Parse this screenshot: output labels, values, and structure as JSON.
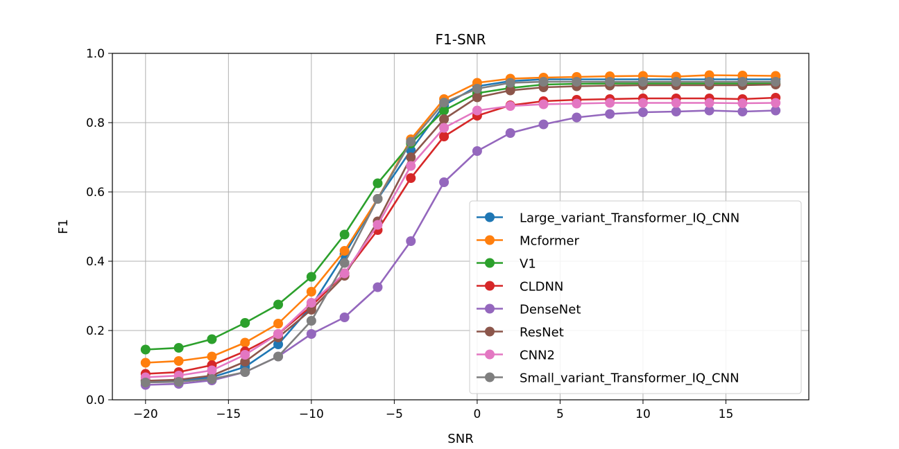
{
  "chart_data": {
    "type": "line",
    "title": "F1-SNR",
    "xlabel": "SNR",
    "ylabel": "F1",
    "xlim": [
      -22,
      20
    ],
    "ylim": [
      0.0,
      1.0
    ],
    "xticks": [
      -20,
      -15,
      -10,
      -5,
      0,
      5,
      10,
      15
    ],
    "xtick_labels": [
      "−20",
      "−15",
      "−10",
      "−5",
      "0",
      "5",
      "10",
      "15"
    ],
    "yticks": [
      0.0,
      0.2,
      0.4,
      0.6,
      0.8,
      1.0
    ],
    "ytick_labels": [
      "0.0",
      "0.2",
      "0.4",
      "0.6",
      "0.8",
      "1.0"
    ],
    "grid": true,
    "legend_position": "center-right",
    "x": [
      -20,
      -18,
      -16,
      -14,
      -12,
      -10,
      -8,
      -6,
      -4,
      -2,
      0,
      2,
      4,
      6,
      8,
      10,
      12,
      14,
      16,
      18
    ],
    "series": [
      {
        "name": "Large_variant_Transformer_IQ_CNN",
        "color": "#1f77b4",
        "values": [
          0.055,
          0.055,
          0.065,
          0.095,
          0.16,
          0.27,
          0.42,
          0.58,
          0.72,
          0.85,
          0.905,
          0.92,
          0.925,
          0.925,
          0.925,
          0.925,
          0.925,
          0.925,
          0.925,
          0.925
        ]
      },
      {
        "name": "Mcformer",
        "color": "#ff7f0e",
        "values": [
          0.107,
          0.112,
          0.125,
          0.165,
          0.22,
          0.312,
          0.43,
          0.58,
          0.752,
          0.868,
          0.915,
          0.927,
          0.93,
          0.932,
          0.934,
          0.935,
          0.933,
          0.937,
          0.936,
          0.935
        ]
      },
      {
        "name": "V1",
        "color": "#2ca02c",
        "values": [
          0.145,
          0.15,
          0.175,
          0.222,
          0.275,
          0.355,
          0.477,
          0.625,
          0.74,
          0.835,
          0.885,
          0.9,
          0.91,
          0.912,
          0.913,
          0.913,
          0.913,
          0.913,
          0.913,
          0.913
        ]
      },
      {
        "name": "CLDNN",
        "color": "#d62728",
        "values": [
          0.075,
          0.08,
          0.1,
          0.14,
          0.19,
          0.27,
          0.365,
          0.49,
          0.64,
          0.76,
          0.82,
          0.85,
          0.862,
          0.866,
          0.868,
          0.87,
          0.87,
          0.87,
          0.868,
          0.872
        ]
      },
      {
        "name": "DenseNet",
        "color": "#9467bd",
        "values": [
          0.043,
          0.046,
          0.056,
          0.08,
          0.125,
          0.19,
          0.238,
          0.325,
          0.458,
          0.628,
          0.718,
          0.77,
          0.795,
          0.815,
          0.825,
          0.83,
          0.832,
          0.835,
          0.832,
          0.835
        ]
      },
      {
        "name": "ResNet",
        "color": "#8c564b",
        "values": [
          0.055,
          0.058,
          0.07,
          0.11,
          0.18,
          0.26,
          0.358,
          0.515,
          0.7,
          0.81,
          0.873,
          0.893,
          0.902,
          0.905,
          0.907,
          0.908,
          0.908,
          0.908,
          0.908,
          0.91
        ]
      },
      {
        "name": "CNN2",
        "color": "#e377c2",
        "values": [
          0.065,
          0.07,
          0.085,
          0.13,
          0.19,
          0.28,
          0.365,
          0.505,
          0.675,
          0.785,
          0.835,
          0.848,
          0.853,
          0.855,
          0.857,
          0.857,
          0.857,
          0.857,
          0.856,
          0.857
        ]
      },
      {
        "name": "Small_variant_Transformer_IQ_CNN",
        "color": "#7f7f7f",
        "values": [
          0.05,
          0.052,
          0.06,
          0.08,
          0.125,
          0.228,
          0.395,
          0.58,
          0.745,
          0.858,
          0.898,
          0.915,
          0.918,
          0.918,
          0.918,
          0.918,
          0.918,
          0.918,
          0.918,
          0.918
        ]
      }
    ]
  }
}
